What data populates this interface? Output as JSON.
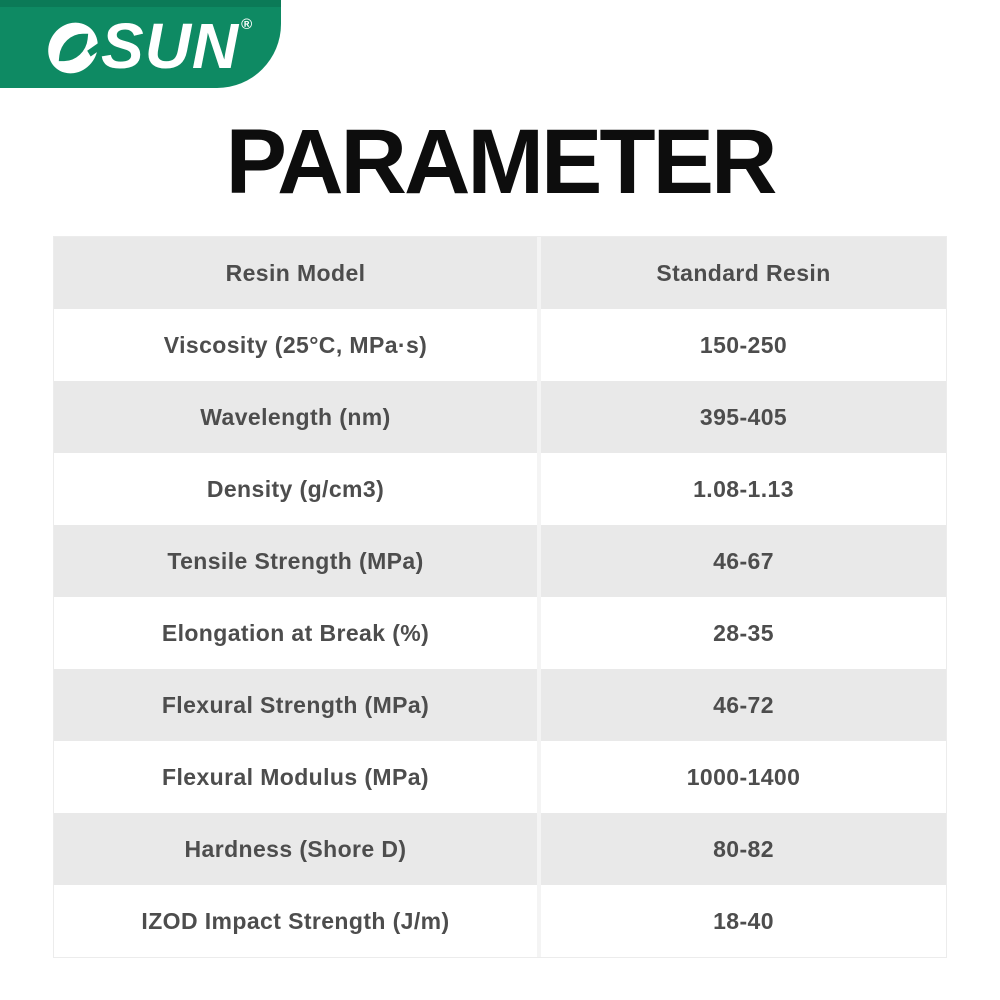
{
  "brand": {
    "logo_text": "SUN",
    "registered_mark": "®"
  },
  "title": "PARAMETER",
  "table": {
    "header": {
      "parameter_label": "Resin Model",
      "value_label": "Standard Resin"
    },
    "rows": [
      {
        "label": "Viscosity (25°C, MPa·s)",
        "value": "150-250"
      },
      {
        "label": "Wavelength (nm)",
        "value": "395-405"
      },
      {
        "label": "Density (g/cm3)",
        "value": "1.08-1.13"
      },
      {
        "label": "Tensile Strength (MPa)",
        "value": "46-67"
      },
      {
        "label": "Elongation at Break (%)",
        "value": "28-35"
      },
      {
        "label": "Flexural Strength (MPa)",
        "value": "46-72"
      },
      {
        "label": "Flexural Modulus (MPa)",
        "value": "1000-1400"
      },
      {
        "label": "Hardness (Shore D)",
        "value": "80-82"
      },
      {
        "label": "IZOD Impact Strength (J/m)",
        "value": "18-40"
      }
    ]
  },
  "colors": {
    "brand_green": "#0e8a63",
    "brand_green_dark": "#0b7a57",
    "row_gray": "#e9e9e9",
    "table_text": "#4d4d4d"
  }
}
